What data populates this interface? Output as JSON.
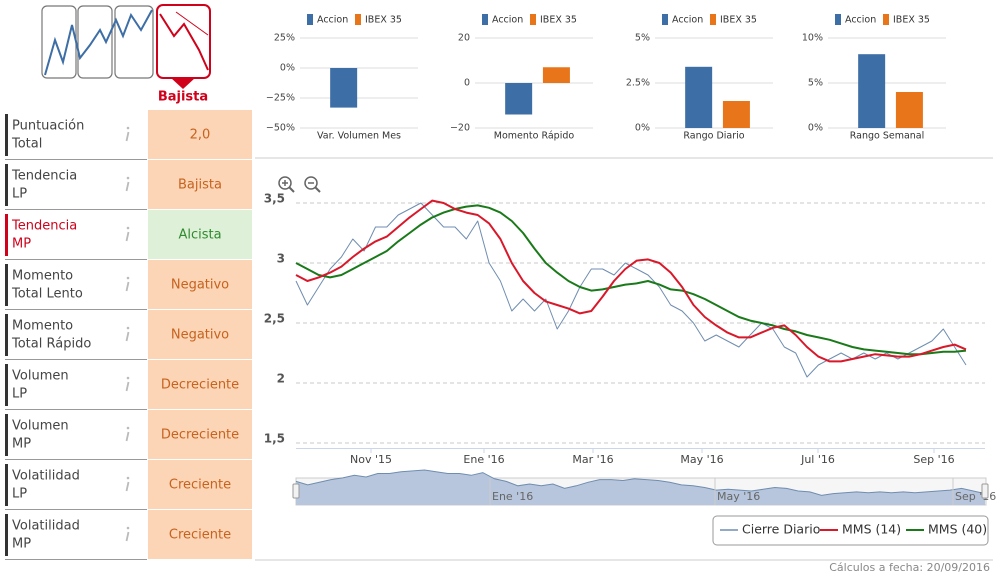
{
  "indicator": {
    "label": "Bajista"
  },
  "rows": [
    {
      "label": [
        "Puntuación",
        "Total"
      ],
      "value": "2,0",
      "color": "#fbd5b5",
      "text_color": "#c8621e"
    },
    {
      "label": [
        "Tendencia",
        "LP"
      ],
      "value": "Bajista",
      "color": "#fbd5b5",
      "text_color": "#c8621e"
    },
    {
      "label": [
        "Tendencia",
        "MP"
      ],
      "value": "Alcista",
      "color": "#dff0d8",
      "text_color": "#2e8b2e",
      "label_color": "#d0021b"
    },
    {
      "label": [
        "Momento",
        "Total Lento"
      ],
      "value": "Negativo",
      "color": "#fbd5b5",
      "text_color": "#c8621e"
    },
    {
      "label": [
        "Momento",
        "Total Rápido"
      ],
      "value": "Negativo",
      "color": "#fbd5b5",
      "text_color": "#c8621e"
    },
    {
      "label": [
        "Volumen",
        "LP"
      ],
      "value": "Decreciente",
      "color": "#fbd5b5",
      "text_color": "#c8621e"
    },
    {
      "label": [
        "Volumen",
        "MP"
      ],
      "value": "Decreciente",
      "color": "#fbd5b5",
      "text_color": "#c8621e"
    },
    {
      "label": [
        "Volatilidad",
        "LP"
      ],
      "value": "Creciente",
      "color": "#fbd5b5",
      "text_color": "#c8621e"
    },
    {
      "label": [
        "Volatilidad",
        "MP"
      ],
      "value": "Creciente",
      "color": "#fbd5b5",
      "text_color": "#c8621e"
    }
  ],
  "chart_data": [
    {
      "type": "bar",
      "categories": [
        "Var. Volumen Mes"
      ],
      "series": [
        {
          "name": "Accion",
          "color": "#3d6ea5",
          "values": [
            -33
          ]
        },
        {
          "name": "IBEX 35",
          "color": "#e8751a",
          "values": [
            null
          ]
        }
      ],
      "ylim": [
        -50,
        25
      ],
      "yticks": [
        {
          "value": 25,
          "label": "25%"
        },
        {
          "value": 0,
          "label": "0%"
        },
        {
          "value": -25,
          "label": "−25%"
        },
        {
          "value": -50,
          "label": "−50%"
        }
      ]
    },
    {
      "type": "bar",
      "categories": [
        "Momento Rápido"
      ],
      "series": [
        {
          "name": "Accion",
          "color": "#3d6ea5",
          "values": [
            -14
          ]
        },
        {
          "name": "IBEX 35",
          "color": "#e8751a",
          "values": [
            7
          ]
        }
      ],
      "ylim": [
        -20,
        20
      ],
      "yticks": [
        20,
        0,
        {
          "value": -20,
          "label": "−20"
        }
      ]
    },
    {
      "type": "bar",
      "categories": [
        "Rango Diario"
      ],
      "series": [
        {
          "name": "Accion",
          "color": "#3d6ea5",
          "values": [
            3.4
          ]
        },
        {
          "name": "IBEX 35",
          "color": "#e8751a",
          "values": [
            1.5
          ]
        }
      ],
      "ylim": [
        0,
        5
      ],
      "yticks": [
        {
          "value": 5,
          "label": "5%"
        },
        {
          "value": 2.5,
          "label": "2.5%"
        },
        {
          "value": 0,
          "label": "0%"
        }
      ]
    },
    {
      "type": "bar",
      "categories": [
        "Rango Semanal"
      ],
      "series": [
        {
          "name": "Accion",
          "color": "#3d6ea5",
          "values": [
            8.2
          ]
        },
        {
          "name": "IBEX 35",
          "color": "#e8751a",
          "values": [
            4.0
          ]
        }
      ],
      "ylim": [
        0,
        10
      ],
      "yticks": [
        {
          "value": 10,
          "label": "10%"
        },
        {
          "value": 5,
          "label": "5%"
        },
        {
          "value": 0,
          "label": "0%"
        }
      ]
    },
    {
      "type": "line",
      "xticks": [
        "Nov '15",
        "Ene '16",
        "Mar '16",
        "May '16",
        "Jul '16",
        "Sep '16"
      ],
      "ylim": [
        1.5,
        3.5
      ],
      "yticks": [
        {
          "value": 3.5,
          "label": "3,5"
        },
        3,
        {
          "value": 2.5,
          "label": "2,5"
        },
        2,
        {
          "value": 1.5,
          "label": "1,5"
        }
      ],
      "grid": true,
      "series": [
        {
          "name": "Cierre Diario",
          "color": "#6f8db0",
          "values": [
            2.85,
            2.65,
            2.8,
            2.95,
            3.05,
            3.2,
            3.1,
            3.3,
            3.3,
            3.4,
            3.45,
            3.5,
            3.4,
            3.3,
            3.3,
            3.2,
            3.35,
            3.0,
            2.85,
            2.6,
            2.7,
            2.6,
            2.7,
            2.45,
            2.6,
            2.8,
            2.95,
            2.95,
            2.9,
            3.0,
            2.95,
            2.9,
            2.8,
            2.65,
            2.6,
            2.5,
            2.35,
            2.4,
            2.35,
            2.3,
            2.4,
            2.5,
            2.45,
            2.3,
            2.25,
            2.05,
            2.15,
            2.2,
            2.25,
            2.2,
            2.25,
            2.2,
            2.25,
            2.2,
            2.25,
            2.3,
            2.35,
            2.45,
            2.3,
            2.15
          ]
        },
        {
          "name": "MMS (14)",
          "color": "#d9182a",
          "values": [
            2.9,
            2.85,
            2.88,
            2.92,
            2.97,
            3.05,
            3.12,
            3.18,
            3.22,
            3.3,
            3.38,
            3.45,
            3.52,
            3.5,
            3.45,
            3.42,
            3.4,
            3.33,
            3.2,
            3.0,
            2.85,
            2.75,
            2.68,
            2.65,
            2.62,
            2.58,
            2.6,
            2.72,
            2.85,
            2.95,
            3.02,
            3.03,
            3.0,
            2.92,
            2.8,
            2.65,
            2.55,
            2.48,
            2.42,
            2.38,
            2.38,
            2.42,
            2.46,
            2.48,
            2.4,
            2.3,
            2.22,
            2.18,
            2.18,
            2.2,
            2.22,
            2.24,
            2.23,
            2.22,
            2.22,
            2.24,
            2.27,
            2.3,
            2.32,
            2.28
          ]
        },
        {
          "name": "MMS (40)",
          "color": "#1a7a1a",
          "values": [
            3.0,
            2.95,
            2.9,
            2.88,
            2.9,
            2.95,
            3.0,
            3.05,
            3.1,
            3.18,
            3.25,
            3.32,
            3.38,
            3.42,
            3.45,
            3.47,
            3.48,
            3.46,
            3.42,
            3.35,
            3.25,
            3.12,
            3.0,
            2.92,
            2.85,
            2.8,
            2.77,
            2.78,
            2.8,
            2.82,
            2.83,
            2.85,
            2.82,
            2.78,
            2.77,
            2.74,
            2.7,
            2.65,
            2.6,
            2.55,
            2.52,
            2.5,
            2.48,
            2.45,
            2.43,
            2.4,
            2.38,
            2.36,
            2.33,
            2.3,
            2.28,
            2.27,
            2.26,
            2.25,
            2.24,
            2.24,
            2.25,
            2.26,
            2.26,
            2.27
          ]
        }
      ]
    }
  ],
  "footer": "Cálculos a fecha: 20/09/2016"
}
